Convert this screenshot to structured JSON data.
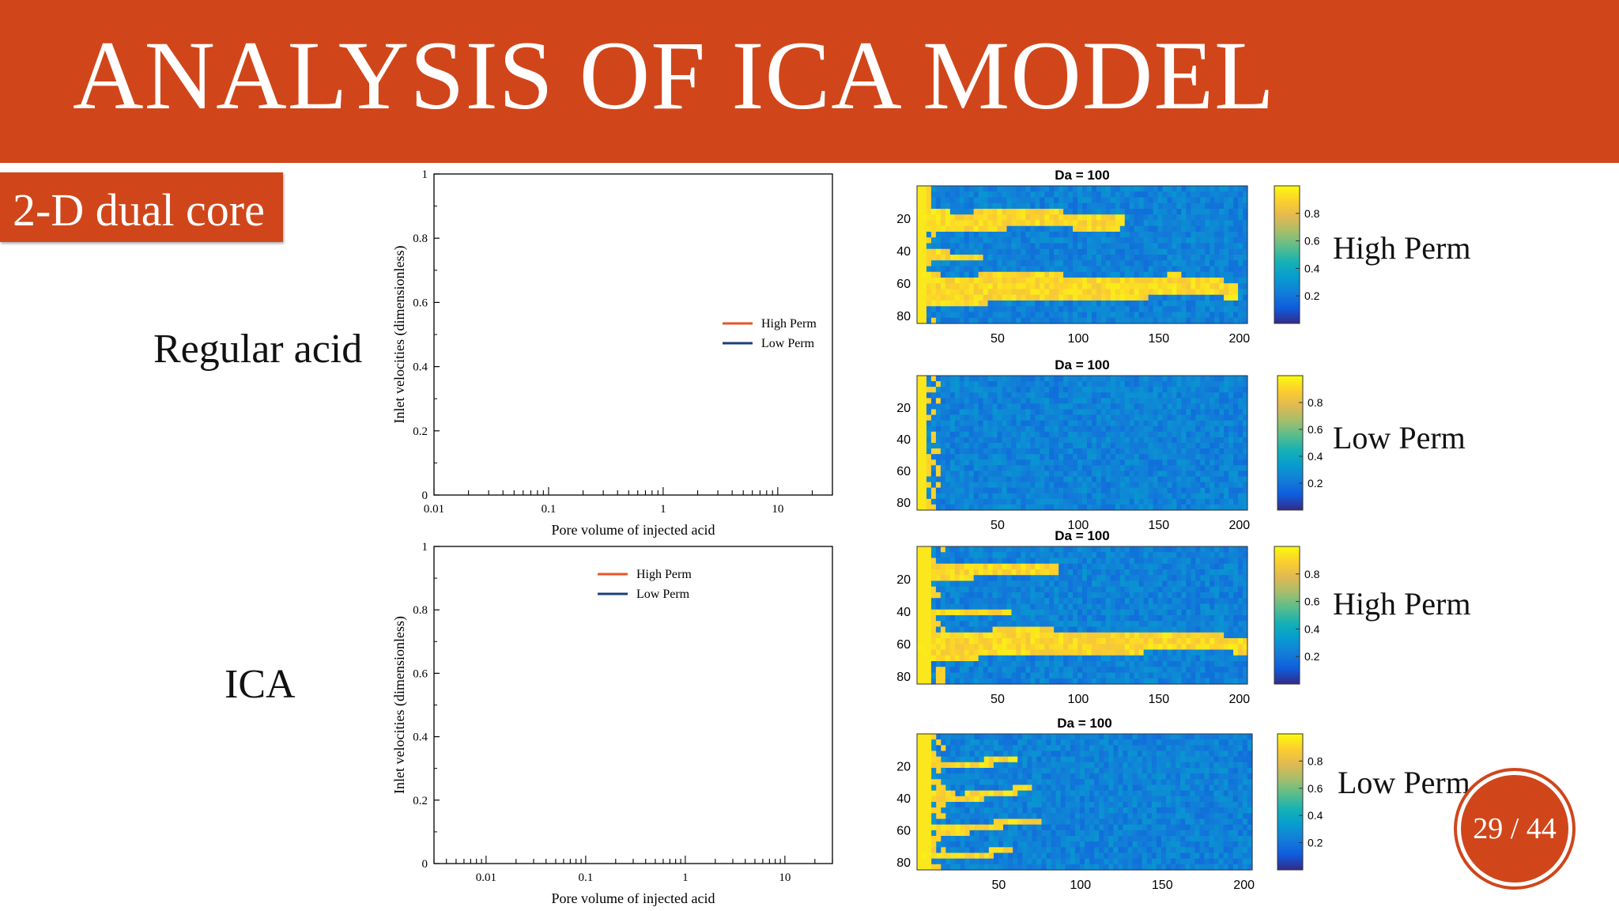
{
  "slide": {
    "title": "ANALYSIS OF ICA MODEL",
    "subtitle": "2-D dual core",
    "rows": {
      "regular": "Regular acid",
      "ica": "ICA"
    },
    "perm_labels": [
      "High Perm",
      "Low Perm",
      "High Perm",
      "Low Perm"
    ],
    "page": "29 / 44",
    "colors": {
      "accent": "#d0461a",
      "high_perm_line": "#e8542a",
      "low_perm_line": "#1a3f7a"
    }
  },
  "chart_data": [
    {
      "type": "line",
      "title": "",
      "xlabel": "Pore volume of injected acid",
      "ylabel": "Inlet velocities (dimensionless)",
      "xscale": "log",
      "xlim": [
        0.01,
        30
      ],
      "ylim": [
        0,
        1
      ],
      "xticks": [
        "0.01",
        "0.1",
        "1",
        "10"
      ],
      "yticks": [
        "0",
        "0.2",
        "0.4",
        "0.6",
        "0.8",
        "1"
      ],
      "legend_position": "center-right",
      "series": [
        {
          "name": "High Perm",
          "color": "#e8542a",
          "values": []
        },
        {
          "name": "Low Perm",
          "color": "#1a3f7a",
          "values": []
        }
      ]
    },
    {
      "type": "line",
      "title": "",
      "xlabel": "Pore volume of injected acid",
      "ylabel": "Inlet velocities (dimensionless)",
      "xscale": "log",
      "xlim": [
        0.003,
        30
      ],
      "ylim": [
        0,
        1
      ],
      "xticks": [
        "0.01",
        "0.1",
        "1",
        "10"
      ],
      "yticks": [
        "0",
        "0.2",
        "0.4",
        "0.6",
        "0.8",
        "1"
      ],
      "legend_position": "top-center",
      "series": [
        {
          "name": "High Perm",
          "color": "#e8542a",
          "values": []
        },
        {
          "name": "Low Perm",
          "color": "#1a3f7a",
          "values": []
        }
      ]
    },
    {
      "type": "heatmap",
      "title": "Da = 100",
      "xticks": [
        "50",
        "100",
        "150",
        "200"
      ],
      "yticks": [
        "20",
        "40",
        "60",
        "80"
      ],
      "colorbar_ticks": [
        "0.2",
        "0.4",
        "0.6",
        "0.8"
      ],
      "colormap": "parula",
      "label": "High Perm"
    },
    {
      "type": "heatmap",
      "title": "Da = 100",
      "xticks": [
        "50",
        "100",
        "150",
        "200"
      ],
      "yticks": [
        "20",
        "40",
        "60",
        "80"
      ],
      "colorbar_ticks": [
        "0.2",
        "0.4",
        "0.6",
        "0.8"
      ],
      "colormap": "parula",
      "label": "Low Perm"
    },
    {
      "type": "heatmap",
      "title": "Da = 100",
      "xticks": [
        "50",
        "100",
        "150",
        "200"
      ],
      "yticks": [
        "20",
        "40",
        "60",
        "80"
      ],
      "colorbar_ticks": [
        "0.2",
        "0.4",
        "0.6",
        "0.8"
      ],
      "colormap": "parula",
      "label": "High Perm"
    },
    {
      "type": "heatmap",
      "title": "Da = 100",
      "xticks": [
        "50",
        "100",
        "150",
        "200"
      ],
      "yticks": [
        "20",
        "40",
        "60",
        "80"
      ],
      "colorbar_ticks": [
        "0.2",
        "0.4",
        "0.6",
        "0.8"
      ],
      "colormap": "parula",
      "label": "Low Perm"
    }
  ]
}
